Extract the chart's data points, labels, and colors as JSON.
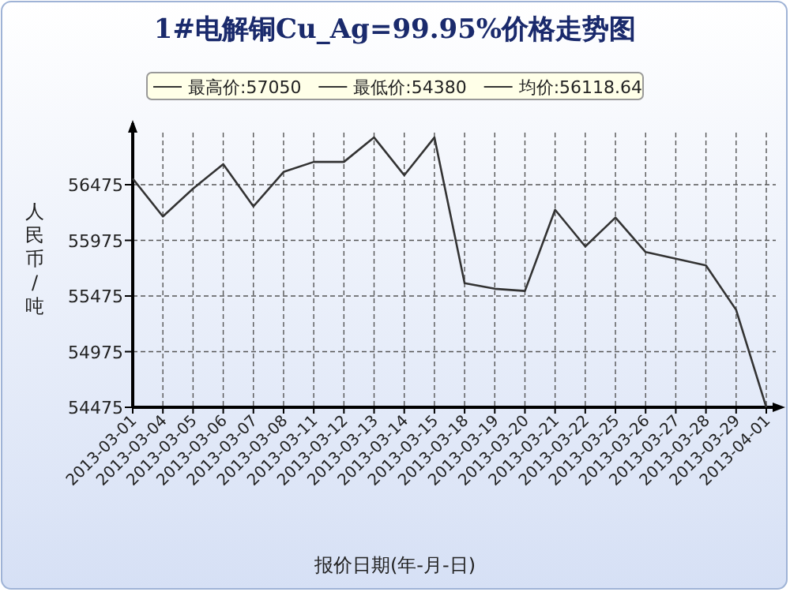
{
  "chart_data": {
    "type": "line",
    "title": "1#电解铜Cu_Ag=99.95%价格走势图",
    "ylabel": "人民币/吨",
    "xlabel": "报价日期(年-月-日)",
    "annotations": [
      "最高价:57050",
      "最低价:54380",
      "均价:56118.64"
    ],
    "categories": [
      "2013-03-01",
      "2013-03-04",
      "2013-03-05",
      "2013-03-06",
      "2013-03-07",
      "2013-03-08",
      "2013-03-11",
      "2013-03-12",
      "2013-03-13",
      "2013-03-14",
      "2013-03-15",
      "2013-03-18",
      "2013-03-19",
      "2013-03-20",
      "2013-03-21",
      "2013-03-22",
      "2013-03-25",
      "2013-03-26",
      "2013-03-27",
      "2013-03-28",
      "2013-03-29",
      "2013-04-01"
    ],
    "values": [
      56530,
      56190,
      56440,
      56660,
      56280,
      56590,
      56680,
      56680,
      56900,
      56560,
      56900,
      55590,
      55540,
      55520,
      56250,
      55920,
      56180,
      55870,
      55810,
      55750,
      55350,
      54475
    ],
    "color": "#333333",
    "ylim": [
      54475,
      57000
    ],
    "yticks": [
      54475,
      54975,
      55475,
      55975,
      56475
    ],
    "grid": true
  }
}
